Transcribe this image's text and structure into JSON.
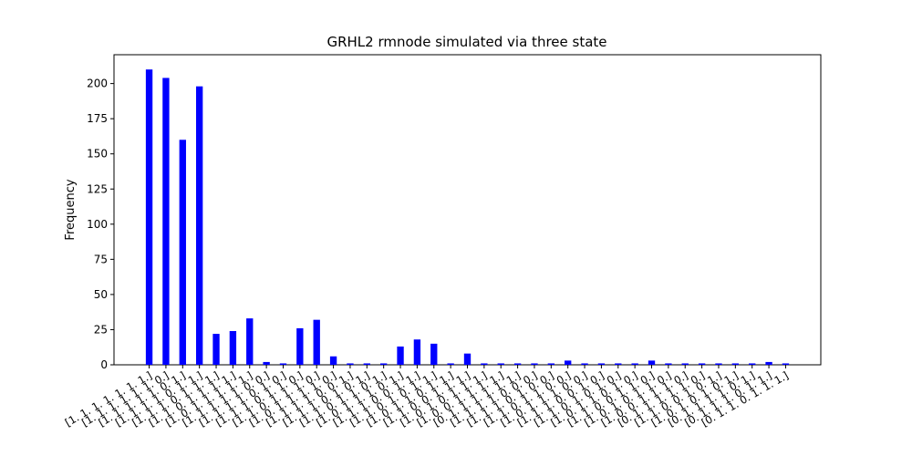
{
  "chart_data": {
    "type": "bar",
    "title": "GRHL2 rmnode simulated via three state",
    "y_label": "Frequency",
    "categories": [
      "[1. 1. 1. 1. 1. 1. 1.]",
      "[1. 1. 1. 1. 1. 1. 0.]",
      "[1. 1. 1. 1. 1. 0. 1.]",
      "[1. 1. 1. 1. 0. 1. 1.]",
      "[1. 1. 1. 0. 1. 1. 1.]",
      "[1. 1. 0. 1. 1. 1. 1.]",
      "[1. 0. 1. 1. 1. 1. 1.]",
      "[1. 1. 1. 1. 1. 0. 0.]",
      "[1. 1. 1. 1. 0. 1. 0.]",
      "[1. 1. 1. 0. 1. 1. 0.]",
      "[1. 1. 0. 1. 1. 1. 0.]",
      "[1. 0. 1. 1. 1. 1. 0.]",
      "[1. 1. 1. 1. 0. 0. 1.]",
      "[1. 1. 1. 0. 1. 0. 1.]",
      "[1. 1. 0. 1. 1. 0. 1.]",
      "[1. 0. 1. 1. 1. 0. 1.]",
      "[1. 1. 1. 0. 0. 1. 1.]",
      "[1. 1. 0. 1. 0. 1. 1.]",
      "[1. 0. 1. 1. 0. 1. 1.]",
      "[1. 1. 0. 0. 1. 1. 1.]",
      "[1. 0. 1. 0. 1. 1. 1.]",
      "[1. 0. 0. 1. 1. 1. 1.]",
      "[0. 1. 1. 1. 1. 1. 1.]",
      "[1. 1. 1. 1. 0. 0. 0.]",
      "[1. 1. 1. 0. 1. 0. 0.]",
      "[1. 1. 0. 1. 1. 0. 0.]",
      "[1. 0. 1. 1. 1. 0. 0.]",
      "[1. 1. 1. 0. 0. 1. 0.]",
      "[1. 1. 0. 1. 0. 1. 0.]",
      "[1. 0. 1. 1. 0. 1. 0.]",
      "[1. 1. 0. 0. 1. 1. 0.]",
      "[1. 0. 1. 0. 1. 1. 0.]",
      "[1. 0. 0. 1. 1. 1. 0.]",
      "[0. 1. 1. 1. 1. 1. 0.]",
      "[1. 1. 0. 0. 1. 0. 1.]",
      "[1. 0. 1. 0. 1. 0. 1.]",
      "[0. 1. 1. 1. 1. 0. 1.]",
      "[0. 1. 1. 1. 0. 1. 1.]",
      "[0. 1. 1. 0. 1. 1. 1.]"
    ],
    "values": [
      210,
      204,
      160,
      198,
      22,
      24,
      33,
      2,
      1,
      26,
      32,
      6,
      1,
      1,
      1,
      13,
      18,
      15,
      1,
      8,
      1,
      1,
      1,
      1,
      1,
      3,
      1,
      1,
      1,
      1,
      3,
      1,
      1,
      1,
      1,
      1,
      1,
      2,
      1
    ],
    "color": "#0000ff",
    "ylim": [
      0,
      220.5
    ],
    "yticks": [
      0,
      25,
      50,
      75,
      100,
      125,
      150,
      175,
      200
    ],
    "grid": false
  }
}
